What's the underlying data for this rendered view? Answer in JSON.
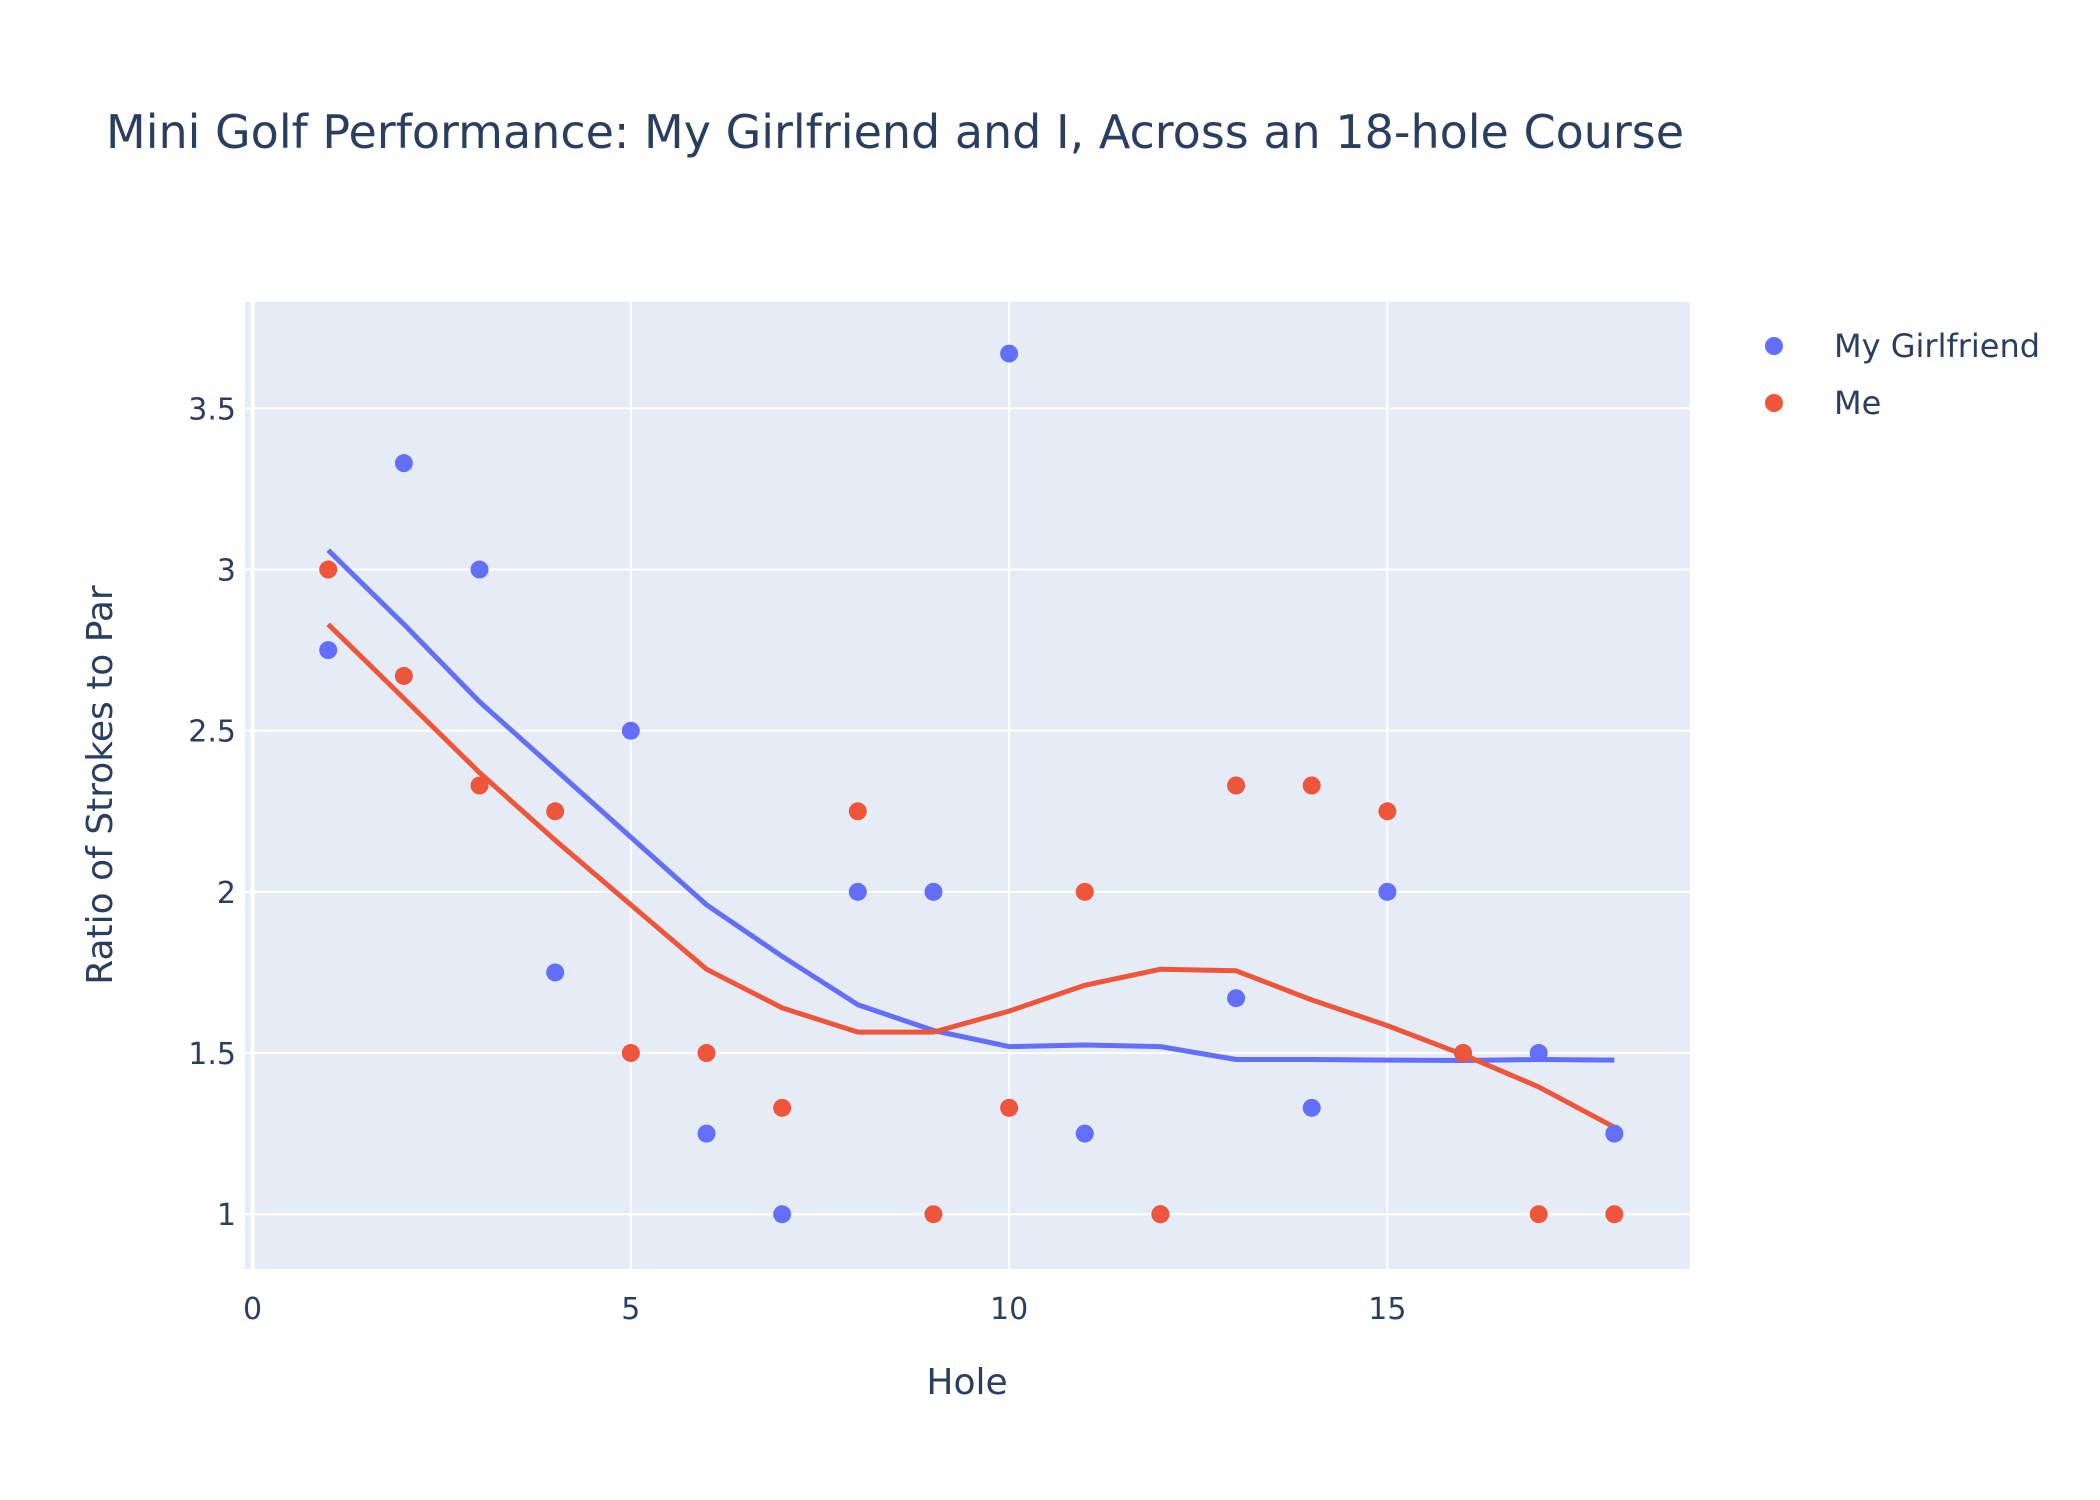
{
  "chart_data": {
    "type": "scatter",
    "title": "Mini Golf Performance: My Girlfriend and I, Across an 18-hole Course",
    "xlabel": "Hole",
    "ylabel": "Ratio of Strokes to Par",
    "xlim": [
      -0.1,
      19
    ],
    "ylim": [
      0.83,
      3.83
    ],
    "x_ticks": [
      0,
      5,
      10,
      15
    ],
    "y_ticks": [
      1,
      1.5,
      2,
      2.5,
      3,
      3.5
    ],
    "x_tick_labels": [
      "0",
      "5",
      "10",
      "15"
    ],
    "y_tick_labels": [
      "1",
      "1.5",
      "2",
      "2.5",
      "3",
      "3.5"
    ],
    "grid": true,
    "legend_position": "top-right",
    "x": [
      1,
      2,
      3,
      4,
      5,
      6,
      7,
      8,
      9,
      10,
      11,
      12,
      13,
      14,
      15,
      16,
      17,
      18
    ],
    "series": [
      {
        "name": "My Girlfriend",
        "color": "#636efa",
        "values": [
          2.75,
          3.33,
          3.0,
          1.75,
          2.5,
          1.25,
          1.0,
          2.0,
          2.0,
          3.67,
          1.25,
          1.0,
          1.67,
          1.33,
          2.0,
          1.5,
          1.5,
          1.25
        ],
        "trend": [
          3.06,
          2.83,
          2.59,
          2.38,
          2.17,
          1.96,
          1.8,
          1.65,
          1.57,
          1.52,
          1.525,
          1.52,
          1.48,
          1.48,
          1.478,
          1.477,
          1.48,
          1.478
        ]
      },
      {
        "name": "Me",
        "color": "#ef553b",
        "values": [
          3.0,
          2.67,
          2.33,
          2.25,
          1.5,
          1.5,
          1.33,
          2.25,
          1.0,
          1.33,
          2.0,
          1.0,
          2.33,
          2.33,
          2.25,
          1.5,
          1.0,
          1.0
        ],
        "trend": [
          2.83,
          2.6,
          2.37,
          2.16,
          1.96,
          1.76,
          1.64,
          1.565,
          1.565,
          1.63,
          1.71,
          1.76,
          1.755,
          1.665,
          1.585,
          1.495,
          1.395,
          1.27
        ]
      }
    ]
  },
  "colors": {
    "plot_background": "#e5ecf6",
    "grid": "#ffffff",
    "text": "#2a3f5f"
  }
}
